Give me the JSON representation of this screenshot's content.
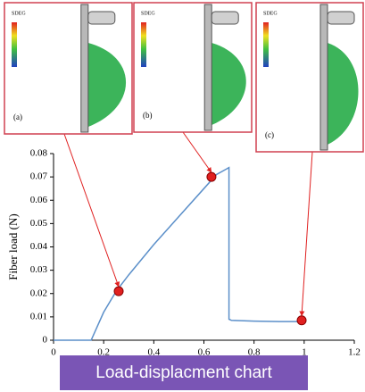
{
  "chart_data": {
    "type": "line",
    "ylabel": "Fiber load (N)",
    "x": [
      0,
      0.15,
      0.2,
      0.25,
      0.3,
      0.4,
      0.5,
      0.6,
      0.65,
      0.7,
      0.7,
      0.71,
      0.8,
      0.9,
      1.0
    ],
    "series": [
      {
        "color": "#5b8fc9",
        "values": [
          0,
          0,
          0.012,
          0.021,
          0.028,
          0.041,
          0.053,
          0.065,
          0.071,
          0.074,
          0.009,
          0.0085,
          0.0082,
          0.008,
          0.008
        ]
      }
    ],
    "highlights": {
      "x": [
        0.26,
        0.63,
        0.99
      ],
      "values": [
        0.021,
        0.07,
        0.0085
      ],
      "color": "#e02020"
    },
    "xlim": [
      0,
      1.2
    ],
    "xticks": [
      0,
      0.2,
      0.4,
      0.6,
      0.8,
      1,
      1.2
    ],
    "ylim": [
      0,
      0.08
    ],
    "yticks": [
      0,
      0.01,
      0.02,
      0.03,
      0.04,
      0.05,
      0.06,
      0.07,
      0.08
    ]
  },
  "insets": [
    {
      "label": "(a)",
      "legend_title": "SDEG"
    },
    {
      "label": "(b)",
      "legend_title": "SDEG"
    },
    {
      "label": "(c)",
      "legend_title": "SDEG"
    }
  ],
  "caption": "Load-displacment chart"
}
